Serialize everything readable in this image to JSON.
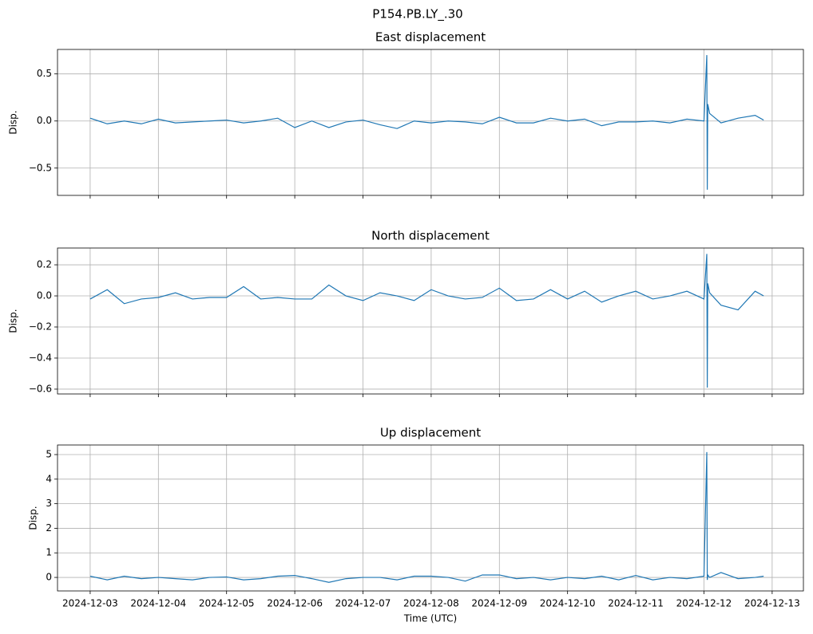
{
  "title": "P154.PB.LY_.30",
  "chart_data": [
    {
      "type": "line",
      "title": "East displacement",
      "ylabel": "Disp.",
      "grid": true,
      "xticklabels": false,
      "x": [
        "2024-12-03T00:00",
        "2024-12-03T06:00",
        "2024-12-03T12:00",
        "2024-12-03T18:00",
        "2024-12-04T00:00",
        "2024-12-04T06:00",
        "2024-12-04T12:00",
        "2024-12-04T18:00",
        "2024-12-05T00:00",
        "2024-12-05T06:00",
        "2024-12-05T12:00",
        "2024-12-05T18:00",
        "2024-12-06T00:00",
        "2024-12-06T06:00",
        "2024-12-06T12:00",
        "2024-12-06T18:00",
        "2024-12-07T00:00",
        "2024-12-07T06:00",
        "2024-12-07T12:00",
        "2024-12-07T18:00",
        "2024-12-08T00:00",
        "2024-12-08T06:00",
        "2024-12-08T12:00",
        "2024-12-08T18:00",
        "2024-12-09T00:00",
        "2024-12-09T06:00",
        "2024-12-09T12:00",
        "2024-12-09T18:00",
        "2024-12-10T00:00",
        "2024-12-10T06:00",
        "2024-12-10T12:00",
        "2024-12-10T18:00",
        "2024-12-11T00:00",
        "2024-12-11T06:00",
        "2024-12-11T12:00",
        "2024-12-11T18:00",
        "2024-12-12T00:00",
        "2024-12-12T01:00",
        "2024-12-12T01:10",
        "2024-12-12T01:20",
        "2024-12-12T02:00",
        "2024-12-12T06:00",
        "2024-12-12T12:00",
        "2024-12-12T18:00",
        "2024-12-12T21:00"
      ],
      "series": [
        {
          "color": "#1f77b4",
          "values": [
            0.03,
            -0.03,
            0.0,
            -0.03,
            0.02,
            -0.02,
            -0.01,
            0.0,
            0.01,
            -0.02,
            0.0,
            0.03,
            -0.07,
            0.0,
            -0.07,
            -0.01,
            0.01,
            -0.04,
            -0.08,
            0.0,
            -0.02,
            0.0,
            -0.01,
            -0.03,
            0.04,
            -0.02,
            -0.02,
            0.03,
            0.0,
            0.02,
            -0.05,
            -0.01,
            -0.01,
            0.0,
            -0.02,
            0.02,
            0.0,
            0.7,
            -0.73,
            0.18,
            0.08,
            -0.02,
            0.03,
            0.06,
            0.01
          ]
        }
      ],
      "xlim": [
        "2024-12-02T12:30",
        "2024-12-13T11:00"
      ],
      "xticks": [
        "2024-12-03",
        "2024-12-04",
        "2024-12-05",
        "2024-12-06",
        "2024-12-07",
        "2024-12-08",
        "2024-12-09",
        "2024-12-10",
        "2024-12-11",
        "2024-12-12",
        "2024-12-13"
      ],
      "ylim": [
        -0.79,
        0.76
      ],
      "yticks": [
        {
          "value": -0.5,
          "label": "−0.5"
        },
        {
          "value": 0,
          "label": "0.0"
        },
        {
          "value": 0.5,
          "label": "0.5"
        }
      ]
    },
    {
      "type": "line",
      "title": "North displacement",
      "ylabel": "Disp.",
      "grid": true,
      "xticklabels": false,
      "x": [
        "2024-12-03T00:00",
        "2024-12-03T06:00",
        "2024-12-03T12:00",
        "2024-12-03T18:00",
        "2024-12-04T00:00",
        "2024-12-04T06:00",
        "2024-12-04T12:00",
        "2024-12-04T18:00",
        "2024-12-05T00:00",
        "2024-12-05T06:00",
        "2024-12-05T12:00",
        "2024-12-05T18:00",
        "2024-12-06T00:00",
        "2024-12-06T06:00",
        "2024-12-06T12:00",
        "2024-12-06T18:00",
        "2024-12-07T00:00",
        "2024-12-07T06:00",
        "2024-12-07T12:00",
        "2024-12-07T18:00",
        "2024-12-08T00:00",
        "2024-12-08T06:00",
        "2024-12-08T12:00",
        "2024-12-08T18:00",
        "2024-12-09T00:00",
        "2024-12-09T06:00",
        "2024-12-09T12:00",
        "2024-12-09T18:00",
        "2024-12-10T00:00",
        "2024-12-10T06:00",
        "2024-12-10T12:00",
        "2024-12-10T18:00",
        "2024-12-11T00:00",
        "2024-12-11T06:00",
        "2024-12-11T12:00",
        "2024-12-11T18:00",
        "2024-12-12T00:00",
        "2024-12-12T01:00",
        "2024-12-12T01:10",
        "2024-12-12T01:20",
        "2024-12-12T02:00",
        "2024-12-12T06:00",
        "2024-12-12T12:00",
        "2024-12-12T18:00",
        "2024-12-12T21:00"
      ],
      "series": [
        {
          "color": "#1f77b4",
          "values": [
            -0.02,
            0.04,
            -0.05,
            -0.02,
            -0.01,
            0.02,
            -0.02,
            -0.01,
            -0.01,
            0.06,
            -0.02,
            -0.01,
            -0.02,
            -0.02,
            0.07,
            0.0,
            -0.03,
            0.02,
            0.0,
            -0.03,
            0.04,
            0.0,
            -0.02,
            -0.01,
            0.05,
            -0.03,
            -0.02,
            0.04,
            -0.02,
            0.03,
            -0.04,
            0.0,
            0.03,
            -0.02,
            0.0,
            0.03,
            -0.02,
            0.27,
            -0.59,
            0.08,
            0.02,
            -0.06,
            -0.09,
            0.03,
            0.0
          ]
        }
      ],
      "xlim": [
        "2024-12-02T12:30",
        "2024-12-13T11:00"
      ],
      "xticks": [
        "2024-12-03",
        "2024-12-04",
        "2024-12-05",
        "2024-12-06",
        "2024-12-07",
        "2024-12-08",
        "2024-12-09",
        "2024-12-10",
        "2024-12-11",
        "2024-12-12",
        "2024-12-13"
      ],
      "ylim": [
        -0.631,
        0.308
      ],
      "yticks": [
        {
          "value": -0.6,
          "label": "−0.6"
        },
        {
          "value": -0.4,
          "label": "−0.4"
        },
        {
          "value": -0.2,
          "label": "−0.2"
        },
        {
          "value": 0,
          "label": "0.0"
        },
        {
          "value": 0.2,
          "label": "0.2"
        }
      ]
    },
    {
      "type": "line",
      "title": "Up displacement",
      "ylabel": "Disp.",
      "xlabel": "Time (UTC)",
      "grid": true,
      "xticklabels": true,
      "x": [
        "2024-12-03T00:00",
        "2024-12-03T06:00",
        "2024-12-03T12:00",
        "2024-12-03T18:00",
        "2024-12-04T00:00",
        "2024-12-04T06:00",
        "2024-12-04T12:00",
        "2024-12-04T18:00",
        "2024-12-05T00:00",
        "2024-12-05T06:00",
        "2024-12-05T12:00",
        "2024-12-05T18:00",
        "2024-12-06T00:00",
        "2024-12-06T06:00",
        "2024-12-06T12:00",
        "2024-12-06T18:00",
        "2024-12-07T00:00",
        "2024-12-07T06:00",
        "2024-12-07T12:00",
        "2024-12-07T18:00",
        "2024-12-08T00:00",
        "2024-12-08T06:00",
        "2024-12-08T12:00",
        "2024-12-08T18:00",
        "2024-12-09T00:00",
        "2024-12-09T06:00",
        "2024-12-09T12:00",
        "2024-12-09T18:00",
        "2024-12-10T00:00",
        "2024-12-10T06:00",
        "2024-12-10T12:00",
        "2024-12-10T18:00",
        "2024-12-11T00:00",
        "2024-12-11T06:00",
        "2024-12-11T12:00",
        "2024-12-11T18:00",
        "2024-12-12T00:00",
        "2024-12-12T01:00",
        "2024-12-12T01:10",
        "2024-12-12T01:20",
        "2024-12-12T02:00",
        "2024-12-12T06:00",
        "2024-12-12T12:00",
        "2024-12-12T18:00",
        "2024-12-12T21:00"
      ],
      "series": [
        {
          "color": "#1f77b4",
          "values": [
            0.05,
            -0.1,
            0.05,
            -0.05,
            0.0,
            -0.05,
            -0.1,
            0.0,
            0.02,
            -0.1,
            -0.05,
            0.05,
            0.08,
            -0.05,
            -0.2,
            -0.05,
            0.0,
            0.0,
            -0.1,
            0.05,
            0.05,
            0.0,
            -0.15,
            0.1,
            0.1,
            -0.05,
            0.0,
            -0.1,
            0.0,
            -0.05,
            0.05,
            -0.1,
            0.08,
            -0.1,
            0.0,
            -0.05,
            0.05,
            5.1,
            -0.1,
            0.1,
            0.0,
            0.2,
            -0.05,
            0.0,
            0.05
          ]
        }
      ],
      "xlim": [
        "2024-12-02T12:30",
        "2024-12-13T11:00"
      ],
      "xticks": [
        "2024-12-03",
        "2024-12-04",
        "2024-12-05",
        "2024-12-06",
        "2024-12-07",
        "2024-12-08",
        "2024-12-09",
        "2024-12-10",
        "2024-12-11",
        "2024-12-12",
        "2024-12-13"
      ],
      "ylim": [
        -0.55,
        5.39
      ],
      "yticks": [
        0,
        1,
        2,
        3,
        4,
        5
      ]
    }
  ]
}
